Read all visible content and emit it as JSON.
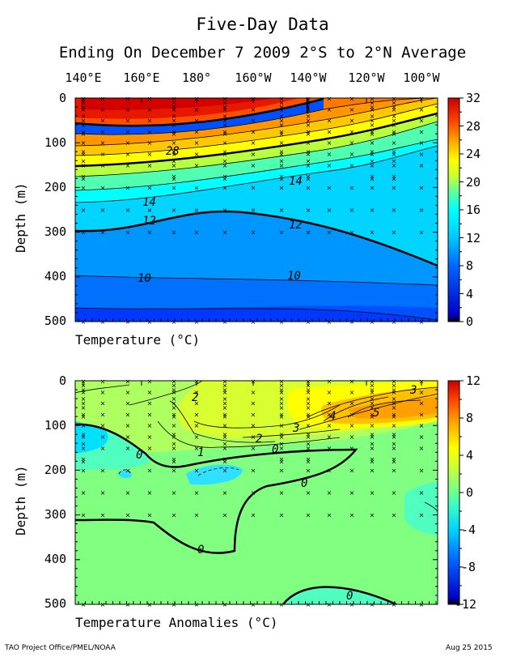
{
  "title": "Five-Day Data",
  "subtitle": "Ending On December 7 2009   2°S to 2°N Average",
  "longitudes": [
    "140°E",
    "160°E",
    "180°",
    "160°W",
    "140°W",
    "120°W",
    "100°W"
  ],
  "footer_left": "TAO Project Office/PMEL/NOAA",
  "footer_right": "Aug 25 2015",
  "chart_data": [
    {
      "type": "heatmap",
      "name": "temperature",
      "xlabel": "Temperature  (°C)",
      "ylabel": "Depth (m)",
      "x_ticks": [
        "140°E",
        "160°E",
        "180°",
        "160°W",
        "140°W",
        "120°W",
        "100°W"
      ],
      "y_ticks": [
        0,
        100,
        200,
        300,
        400,
        500
      ],
      "ylim": [
        500,
        0
      ],
      "colorbar": {
        "range": [
          0,
          32
        ],
        "ticks": [
          0,
          4,
          8,
          12,
          16,
          20,
          24,
          28,
          32
        ]
      },
      "contour_labels": [
        "28",
        "14",
        "12",
        "12",
        "14",
        "10",
        "10"
      ],
      "isotherm_depths": {
        "lon": [
          "140°E",
          "160°E",
          "180°",
          "160°W",
          "140°W",
          "120°W",
          "100°W"
        ],
        "t28": [
          145,
          135,
          130,
          120,
          95,
          null,
          null
        ],
        "t20": [
          210,
          200,
          190,
          175,
          165,
          140,
          120
        ],
        "t14": [
          255,
          250,
          235,
          220,
          205,
          195,
          180
        ],
        "t12": [
          285,
          285,
          265,
          275,
          285,
          305,
          330
        ],
        "t10": [
          400,
          405,
          405,
          400,
          400,
          410,
          420
        ]
      }
    },
    {
      "type": "heatmap",
      "name": "temperature_anomaly",
      "xlabel": "Temperature Anomalies (°C)",
      "ylabel": "Depth (m)",
      "x_ticks": [
        "140°E",
        "160°E",
        "180°",
        "160°W",
        "140°W",
        "120°W",
        "100°W"
      ],
      "y_ticks": [
        0,
        100,
        200,
        300,
        400,
        500
      ],
      "ylim": [
        500,
        0
      ],
      "colorbar": {
        "range": [
          -12,
          12
        ],
        "ticks": [
          -12,
          -8,
          -4,
          0,
          4,
          8,
          12
        ]
      },
      "contour_labels": [
        "0",
        "2",
        "1",
        "2",
        "0",
        "3",
        "4",
        "5",
        "3",
        "0",
        "0",
        "0"
      ]
    }
  ]
}
